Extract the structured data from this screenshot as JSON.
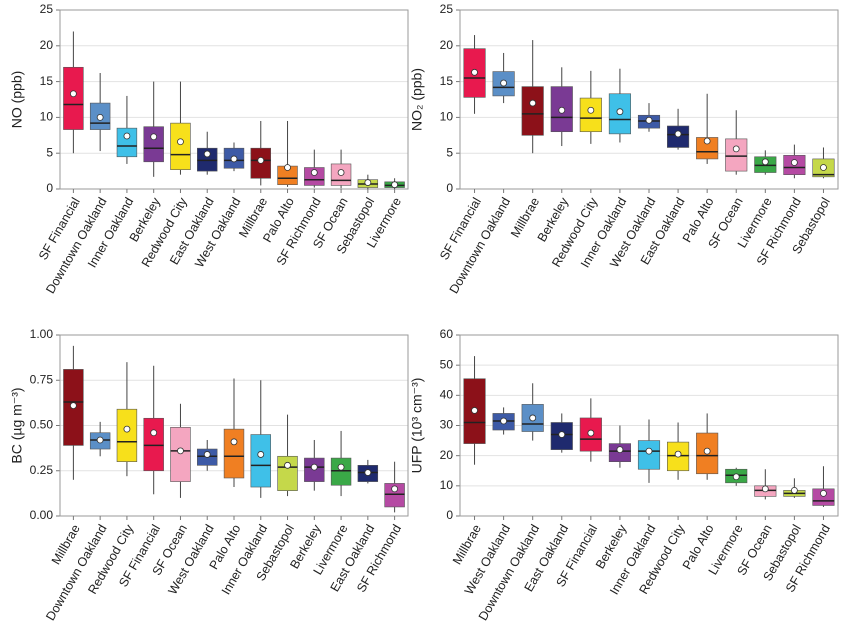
{
  "chart_data": [
    {
      "type": "box",
      "y_label": "NO (ppb)",
      "ylim": [
        0,
        25
      ],
      "yticks": [
        0,
        5,
        10,
        15,
        20,
        25
      ],
      "grid": true,
      "categories": [
        "SF Financial",
        "Downtown Oakland",
        "Inner Oakland",
        "Berkeley",
        "Redwood City",
        "East Oakland",
        "West Oakland",
        "Millbrae",
        "Palo Alto",
        "SF Richmond",
        "SF Ocean",
        "Sebastopol",
        "Livermore"
      ],
      "colors": [
        "#e8194e",
        "#5b8fc7",
        "#3fc0e8",
        "#7a3a94",
        "#f7e01b",
        "#1f2a6e",
        "#3d5aa6",
        "#8c1119",
        "#f07f22",
        "#b54aa3",
        "#f4a6c0",
        "#c5d84a",
        "#3aa847"
      ],
      "whisker_low": [
        5,
        5.3,
        3.5,
        1.7,
        2,
        2,
        2.5,
        0.5,
        0.3,
        0.2,
        0.1,
        0,
        0
      ],
      "q1": [
        8.3,
        8.3,
        4.5,
        3.8,
        2.7,
        2.5,
        2.9,
        1.5,
        0.6,
        0.5,
        0.5,
        0.2,
        0.2
      ],
      "median": [
        11.8,
        9.2,
        6,
        5.7,
        4.8,
        4,
        4,
        4,
        1.5,
        1.3,
        1.2,
        0.7,
        0.5
      ],
      "q3": [
        17,
        12,
        8.5,
        8.7,
        9.2,
        5.7,
        5.7,
        5.7,
        3.2,
        3,
        3.5,
        1.3,
        1
      ],
      "whisker_high": [
        22,
        16.2,
        13,
        15,
        15,
        8,
        6.5,
        9.5,
        9.5,
        5.5,
        5.5,
        2,
        1.5
      ],
      "mean": [
        13.3,
        10,
        7.4,
        7.3,
        6.6,
        4.9,
        4.2,
        4,
        3,
        2.3,
        2.3,
        0.9,
        0.6
      ]
    },
    {
      "type": "box",
      "y_label": "NO₂ (ppb)",
      "ylim": [
        0,
        25
      ],
      "yticks": [
        0,
        5,
        10,
        15,
        20,
        25
      ],
      "grid": true,
      "categories": [
        "SF Financial",
        "Downtown Oakland",
        "Millbrae",
        "Berkeley",
        "Redwood City",
        "Inner Oakland",
        "West Oakland",
        "East Oakland",
        "Palo Alto",
        "SF Ocean",
        "Livermore",
        "SF Richmond",
        "Sebastopol"
      ],
      "colors": [
        "#e8194e",
        "#5b8fc7",
        "#8c1119",
        "#7a3a94",
        "#f7e01b",
        "#3fc0e8",
        "#3d5aa6",
        "#1f2a6e",
        "#f07f22",
        "#f4a6c0",
        "#3aa847",
        "#b54aa3",
        "#c5d84a"
      ],
      "whisker_low": [
        10.5,
        12,
        5,
        6,
        6.3,
        6.5,
        8,
        5.5,
        3.5,
        2,
        2,
        1.5,
        1.5
      ],
      "q1": [
        12.8,
        13,
        7.5,
        8,
        8,
        7.7,
        8.5,
        5.8,
        4.2,
        2.5,
        2.3,
        2,
        1.7
      ],
      "median": [
        15.5,
        14.2,
        10.5,
        10,
        9.9,
        9.7,
        9.5,
        7.6,
        5.2,
        4.6,
        3.3,
        3,
        2
      ],
      "q3": [
        19.6,
        16.4,
        14.3,
        14.3,
        12.7,
        13.3,
        10.3,
        8.8,
        7.2,
        7,
        4.5,
        4.7,
        4.2
      ],
      "whisker_high": [
        21.5,
        19,
        20.8,
        17,
        16.5,
        16.8,
        12,
        11.2,
        13.3,
        11,
        5.4,
        6.2,
        5.8
      ],
      "mean": [
        16.3,
        14.8,
        12,
        11,
        11,
        10.8,
        9.6,
        7.7,
        6.7,
        5.6,
        3.8,
        3.7,
        3
      ]
    },
    {
      "type": "box",
      "y_label": "BC (µg m⁻³)",
      "ylim": [
        0,
        1
      ],
      "yticks": [
        {
          "value": 0,
          "label": "0.00"
        },
        {
          "value": 0.25,
          "label": "0.25"
        },
        {
          "value": 0.5,
          "label": "0.50"
        },
        {
          "value": 0.75,
          "label": "0.75"
        },
        {
          "value": 1,
          "label": "1.00"
        }
      ],
      "grid": true,
      "categories": [
        "Millbrae",
        "Downtown Oakland",
        "Redwood City",
        "SF Financial",
        "SF Ocean",
        "West Oakland",
        "Palo Alto",
        "Inner Oakland",
        "Sebastopol",
        "Berkeley",
        "Livermore",
        "East Oakland",
        "SF Richmond"
      ],
      "colors": [
        "#8c1119",
        "#5b8fc7",
        "#f7e01b",
        "#e8194e",
        "#f4a6c0",
        "#3d5aa6",
        "#f07f22",
        "#3fc0e8",
        "#c5d84a",
        "#7a3a94",
        "#3aa847",
        "#1f2a6e",
        "#b54aa3"
      ],
      "whisker_low": [
        0.2,
        0.33,
        0.22,
        0.12,
        0.1,
        0.25,
        0.16,
        0.1,
        0.11,
        0.14,
        0.11,
        0.18,
        0.02
      ],
      "q1": [
        0.39,
        0.37,
        0.3,
        0.25,
        0.19,
        0.28,
        0.21,
        0.16,
        0.14,
        0.19,
        0.17,
        0.19,
        0.05
      ],
      "median": [
        0.63,
        0.42,
        0.41,
        0.39,
        0.36,
        0.33,
        0.33,
        0.28,
        0.27,
        0.27,
        0.25,
        0.24,
        0.12
      ],
      "q3": [
        0.81,
        0.46,
        0.59,
        0.54,
        0.49,
        0.37,
        0.48,
        0.45,
        0.33,
        0.32,
        0.32,
        0.28,
        0.18
      ],
      "whisker_high": [
        0.94,
        0.52,
        0.85,
        0.83,
        0.62,
        0.42,
        0.76,
        0.75,
        0.56,
        0.42,
        0.47,
        0.31,
        0.3
      ],
      "mean": [
        0.61,
        0.42,
        0.48,
        0.46,
        0.36,
        0.34,
        0.41,
        0.34,
        0.28,
        0.27,
        0.27,
        0.24,
        0.15
      ]
    },
    {
      "type": "box",
      "y_label": "UFP (10³ cm⁻³)",
      "ylim": [
        0,
        60
      ],
      "yticks": [
        0,
        10,
        20,
        30,
        40,
        50,
        60
      ],
      "grid": true,
      "categories": [
        "Millbrae",
        "West Oakland",
        "Downtown Oakland",
        "East Oakland",
        "SF Financial",
        "Berkeley",
        "Inner Oakland",
        "Redwood City",
        "Palo Alto",
        "Livermore",
        "SF Ocean",
        "Sebastopol",
        "SF Richmond"
      ],
      "colors": [
        "#8c1119",
        "#3d5aa6",
        "#5b8fc7",
        "#1f2a6e",
        "#e8194e",
        "#7a3a94",
        "#3fc0e8",
        "#f7e01b",
        "#f07f22",
        "#3aa847",
        "#f4a6c0",
        "#c5d84a",
        "#b54aa3"
      ],
      "whisker_low": [
        17,
        27,
        25,
        21,
        18,
        16,
        11,
        12,
        12,
        10,
        5.5,
        6,
        3
      ],
      "q1": [
        24,
        28.5,
        28,
        22,
        21.5,
        18,
        15.5,
        15,
        14,
        11,
        6.5,
        6.5,
        3.5
      ],
      "median": [
        31,
        31.5,
        30.5,
        27,
        25.5,
        21.5,
        21.5,
        20,
        20,
        13.5,
        8.5,
        7.5,
        5
      ],
      "q3": [
        45.5,
        34,
        37,
        31,
        32.5,
        24,
        25,
        24.5,
        27.5,
        15.5,
        10,
        8.5,
        9
      ],
      "whisker_high": [
        53,
        36,
        44,
        34,
        39,
        30,
        32,
        31,
        34,
        16,
        15.5,
        12.5,
        16.5
      ],
      "mean": [
        35,
        31.5,
        32.5,
        27,
        27.5,
        22,
        21.5,
        20.5,
        21.5,
        13,
        9,
        8.5,
        7.5
      ]
    }
  ]
}
